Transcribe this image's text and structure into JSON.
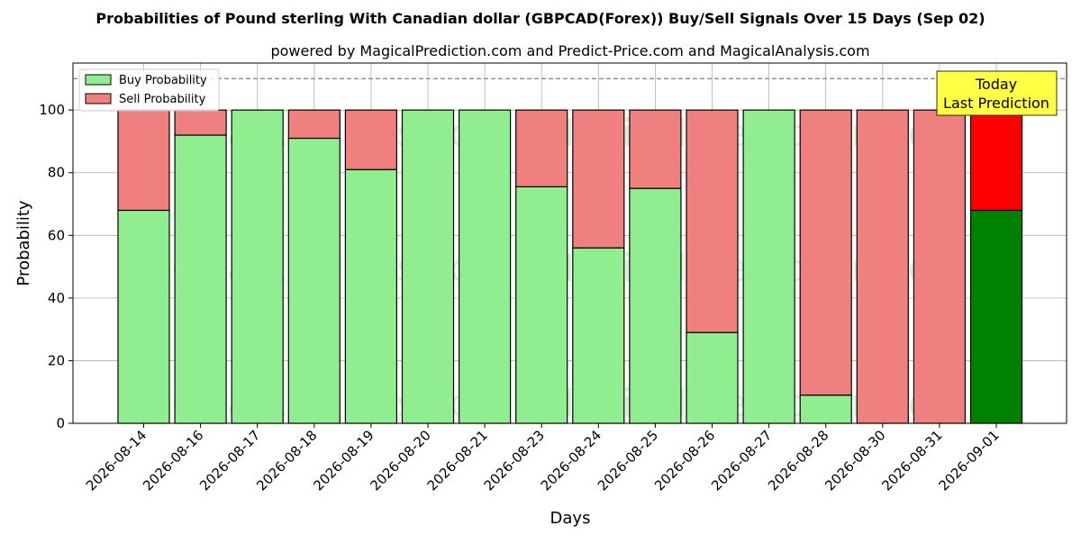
{
  "chart_data": {
    "type": "bar",
    "stacked": true,
    "title": "Probabilities of Pound sterling With Canadian dollar (GBPCAD(Forex)) Buy/Sell Signals Over 15 Days (Sep 02)",
    "subtitle": "powered by MagicalPrediction.com and Predict-Price.com and MagicalAnalysis.com",
    "xlabel": "Days",
    "ylabel": "Probability",
    "ylim": [
      0,
      115
    ],
    "yticks": [
      0,
      20,
      40,
      60,
      80,
      100
    ],
    "grid": true,
    "legend_position": "top-left",
    "reference_line": 110,
    "categories": [
      "2026-08-14",
      "2026-08-16",
      "2026-08-17",
      "2026-08-18",
      "2026-08-19",
      "2026-08-20",
      "2026-08-21",
      "2026-08-23",
      "2026-08-24",
      "2026-08-25",
      "2026-08-26",
      "2026-08-27",
      "2026-08-28",
      "2026-08-30",
      "2026-08-31",
      "2026-09-01"
    ],
    "series": [
      {
        "name": "Buy Probability",
        "color": "#90ee90",
        "values": [
          68,
          92,
          100,
          91,
          81,
          100,
          100,
          75.5,
          56,
          75,
          29,
          100,
          9,
          0,
          0,
          68
        ]
      },
      {
        "name": "Sell Probability",
        "color": "#f08080",
        "values": [
          32,
          8,
          0,
          9,
          19,
          0,
          0,
          24.5,
          44,
          25,
          71,
          0,
          91,
          100,
          100,
          32
        ]
      }
    ],
    "highlight": {
      "index": 15,
      "buy_color": "#008000",
      "sell_color": "#ff0000"
    },
    "annotation": {
      "lines": [
        "Today",
        "Last Prediction"
      ],
      "background": "#ffff44"
    },
    "watermarks": [
      "MagicalAnalysis.com",
      "MagicalPrediction.com"
    ]
  }
}
